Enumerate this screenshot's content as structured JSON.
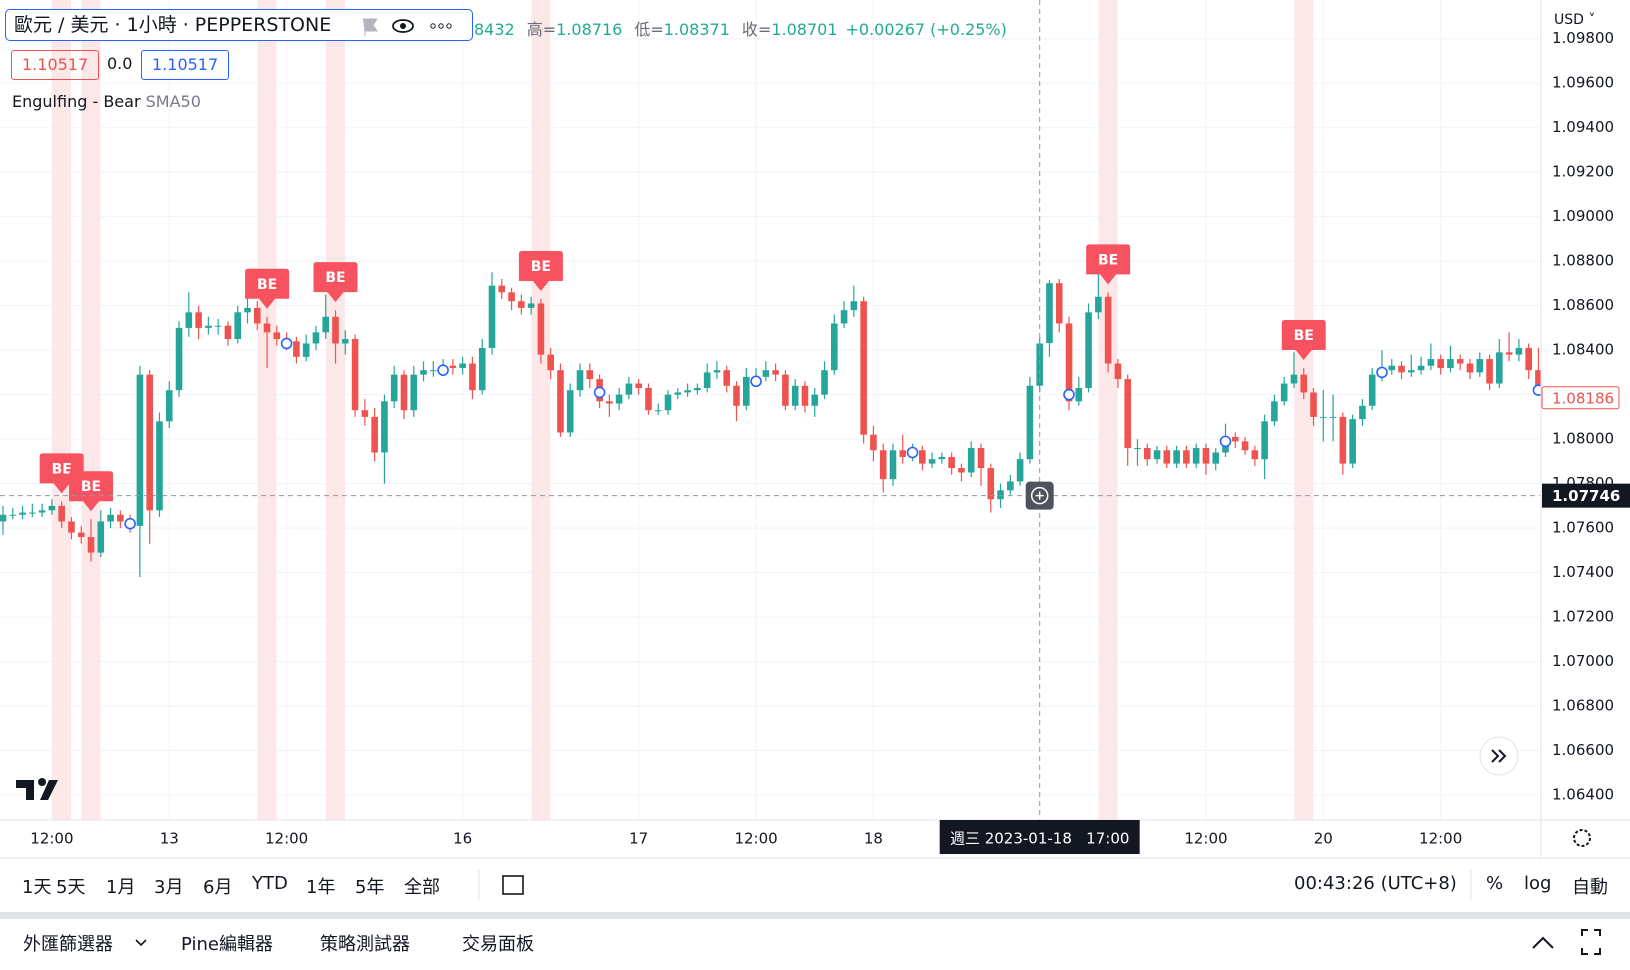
{
  "header": {
    "symbol": "歐元 / 美元 · 1小時 · PEPPERSTONE",
    "ohlc": {
      "open": "8432",
      "high_label": "高=",
      "high": "1.08716",
      "low_label": "低=",
      "low": "1.08371",
      "close_label": "收=",
      "close": "1.08701",
      "change": "+0.00267 (+0.25%)"
    },
    "prices": [
      "1.10517",
      "0.0",
      "1.10517"
    ],
    "currency": "USD"
  },
  "chart_data": {
    "type": "candlestick",
    "indicator": "Engulfing - Bear",
    "up_color": "#26a69a",
    "down_color": "#ef5350",
    "ylim": [
      1.06288,
      1.09974
    ],
    "yticks": [
      {
        "value": 1.064,
        "label": "1.06400"
      },
      {
        "value": 1.066,
        "label": "1.06600"
      },
      {
        "value": 1.068,
        "label": "1.06800"
      },
      {
        "value": 1.07,
        "label": "1.07000"
      },
      {
        "value": 1.072,
        "label": "1.07200"
      },
      {
        "value": 1.074,
        "label": "1.07400"
      },
      {
        "value": 1.076,
        "label": "1.07600"
      },
      {
        "value": 1.078,
        "label": "1.07800"
      },
      {
        "value": 1.08,
        "label": "1.08000"
      },
      {
        "value": 1.082,
        "label": "1.08200"
      },
      {
        "value": 1.084,
        "label": "1.08400"
      },
      {
        "value": 1.086,
        "label": "1.08600"
      },
      {
        "value": 1.088,
        "label": "1.08800"
      },
      {
        "value": 1.09,
        "label": "1.09000"
      },
      {
        "value": 1.092,
        "label": "1.09200"
      },
      {
        "value": 1.094,
        "label": "1.09400"
      },
      {
        "value": 1.096,
        "label": "1.09600"
      },
      {
        "value": 1.098,
        "label": "1.09800"
      }
    ],
    "grid": true,
    "categories": [
      null,
      null,
      null,
      null,
      null,
      "12:00",
      null,
      null,
      null,
      null,
      null,
      null,
      null,
      null,
      null,
      null,
      null,
      "13",
      null,
      null,
      null,
      null,
      null,
      null,
      null,
      null,
      null,
      null,
      null,
      "12:00",
      null,
      null,
      null,
      null,
      null,
      null,
      null,
      null,
      null,
      null,
      null,
      null,
      null,
      null,
      null,
      null,
      null,
      "16",
      null,
      null,
      null,
      null,
      null,
      null,
      null,
      null,
      null,
      null,
      null,
      null,
      null,
      null,
      null,
      null,
      null,
      "17",
      null,
      null,
      null,
      null,
      null,
      null,
      null,
      null,
      null,
      null,
      null,
      "12:00",
      null,
      null,
      null,
      null,
      null,
      null,
      null,
      null,
      null,
      null,
      null,
      "18",
      null,
      null,
      null,
      null,
      null,
      null,
      null,
      null,
      null,
      null,
      null,
      null,
      null,
      null,
      null,
      null,
      null,
      null,
      null,
      null,
      null,
      null,
      null,
      null,
      null,
      null,
      null,
      null,
      null,
      null,
      null,
      null,
      null,
      "12:00",
      null,
      null,
      null,
      null,
      null,
      null,
      null,
      null,
      null,
      null,
      null,
      "20",
      null,
      null,
      null,
      null,
      null,
      null,
      null,
      null,
      null,
      null,
      null,
      "12:00",
      null,
      null,
      null,
      null,
      null,
      null,
      null,
      null,
      null
    ],
    "ohlc": [
      [
        1.0763,
        1.077,
        1.0757,
        1.0766
      ],
      [
        1.0766,
        1.0769,
        1.0764,
        1.0766
      ],
      [
        1.0766,
        1.077,
        1.0764,
        1.0767
      ],
      [
        1.0767,
        1.0771,
        1.0765,
        1.0767
      ],
      [
        1.0767,
        1.0771,
        1.0765,
        1.0768
      ],
      [
        1.0768,
        1.0773,
        1.0766,
        1.077
      ],
      [
        1.077,
        1.0772,
        1.076,
        1.0763
      ],
      [
        1.0763,
        1.0765,
        1.0755,
        1.0758
      ],
      [
        1.0758,
        1.0761,
        1.0753,
        1.0756
      ],
      [
        1.0756,
        1.0764,
        1.0745,
        1.0749
      ],
      [
        1.0749,
        1.0768,
        1.0747,
        1.0763
      ],
      [
        1.0763,
        1.0769,
        1.076,
        1.0766
      ],
      [
        1.0766,
        1.0768,
        1.076,
        1.0763
      ],
      [
        1.0763,
        1.0766,
        1.0758,
        1.0761
      ],
      [
        1.0761,
        1.0833,
        1.0738,
        1.0829
      ],
      [
        1.0829,
        1.0831,
        1.0753,
        1.0768
      ],
      [
        1.0768,
        1.0812,
        1.0765,
        1.0808
      ],
      [
        1.0808,
        1.0826,
        1.0805,
        1.0822
      ],
      [
        1.0822,
        1.0853,
        1.0819,
        1.085
      ],
      [
        1.085,
        1.0866,
        1.0846,
        1.0857
      ],
      [
        1.0857,
        1.086,
        1.0845,
        1.085
      ],
      [
        1.085,
        1.0855,
        1.0847,
        1.0851
      ],
      [
        1.0851,
        1.0854,
        1.0847,
        1.0851
      ],
      [
        1.0851,
        1.0853,
        1.0842,
        1.0845
      ],
      [
        1.0845,
        1.086,
        1.0843,
        1.0857
      ],
      [
        1.0857,
        1.0867,
        1.0852,
        1.0859
      ],
      [
        1.0859,
        1.0862,
        1.0849,
        1.0852
      ],
      [
        1.0852,
        1.0855,
        1.0832,
        1.0848
      ],
      [
        1.0848,
        1.0851,
        1.0842,
        1.0845
      ],
      [
        1.0845,
        1.0848,
        1.084,
        1.0844
      ],
      [
        1.0844,
        1.0846,
        1.0834,
        1.0837
      ],
      [
        1.0837,
        1.0847,
        1.0835,
        1.0843
      ],
      [
        1.0843,
        1.0851,
        1.084,
        1.0848
      ],
      [
        1.0848,
        1.0865,
        1.0845,
        1.0855
      ],
      [
        1.0855,
        1.0858,
        1.0834,
        1.0843
      ],
      [
        1.0843,
        1.0849,
        1.0838,
        1.0845
      ],
      [
        1.0845,
        1.0847,
        1.081,
        1.0813
      ],
      [
        1.0813,
        1.0818,
        1.0806,
        1.081
      ],
      [
        1.081,
        1.0814,
        1.079,
        1.0794
      ],
      [
        1.0794,
        1.082,
        1.078,
        1.0817
      ],
      [
        1.0817,
        1.0833,
        1.0814,
        1.0829
      ],
      [
        1.0829,
        1.0831,
        1.0809,
        1.0813
      ],
      [
        1.0813,
        1.0833,
        1.081,
        1.0829
      ],
      [
        1.0829,
        1.0835,
        1.0826,
        1.0831
      ],
      [
        1.0831,
        1.0835,
        1.0828,
        1.0831
      ],
      [
        1.0831,
        1.0836,
        1.0829,
        1.0833
      ],
      [
        1.0833,
        1.0836,
        1.0829,
        1.0832
      ],
      [
        1.0832,
        1.0837,
        1.0829,
        1.0834
      ],
      [
        1.0834,
        1.0837,
        1.0818,
        1.0822
      ],
      [
        1.0822,
        1.0845,
        1.082,
        1.0841
      ],
      [
        1.0841,
        1.0875,
        1.0838,
        1.0869
      ],
      [
        1.0869,
        1.0872,
        1.0863,
        1.0866
      ],
      [
        1.0866,
        1.0868,
        1.0858,
        1.0862
      ],
      [
        1.0862,
        1.0865,
        1.0856,
        1.0859
      ],
      [
        1.0859,
        1.0864,
        1.0856,
        1.0861
      ],
      [
        1.0861,
        1.0863,
        1.0834,
        1.0838
      ],
      [
        1.0838,
        1.0841,
        1.0827,
        1.0831
      ],
      [
        1.0831,
        1.0834,
        1.0801,
        1.0803
      ],
      [
        1.0803,
        1.0825,
        1.0801,
        1.0822
      ],
      [
        1.0822,
        1.0834,
        1.0819,
        1.0831
      ],
      [
        1.0831,
        1.0834,
        1.0823,
        1.0827
      ],
      [
        1.0827,
        1.0829,
        1.0814,
        1.0817
      ],
      [
        1.0817,
        1.082,
        1.081,
        1.0816
      ],
      [
        1.0816,
        1.0823,
        1.0813,
        1.082
      ],
      [
        1.082,
        1.0828,
        1.0818,
        1.0825
      ],
      [
        1.0825,
        1.0827,
        1.082,
        1.0823
      ],
      [
        1.0823,
        1.0825,
        1.0811,
        1.0813
      ],
      [
        1.0813,
        1.0816,
        1.0811,
        1.0813
      ],
      [
        1.0813,
        1.0822,
        1.0811,
        1.082
      ],
      [
        1.082,
        1.0823,
        1.0818,
        1.0821
      ],
      [
        1.0821,
        1.0825,
        1.0819,
        1.0822
      ],
      [
        1.0822,
        1.0825,
        1.082,
        1.0823
      ],
      [
        1.0823,
        1.0834,
        1.0821,
        1.083
      ],
      [
        1.083,
        1.0835,
        1.0827,
        1.0831
      ],
      [
        1.0831,
        1.0833,
        1.0821,
        1.0824
      ],
      [
        1.0824,
        1.0826,
        1.0808,
        1.0815
      ],
      [
        1.0815,
        1.0832,
        1.0813,
        1.0828
      ],
      [
        1.0828,
        1.0832,
        1.0825,
        1.0828
      ],
      [
        1.0828,
        1.0835,
        1.0826,
        1.0831
      ],
      [
        1.0831,
        1.0834,
        1.0826,
        1.0829
      ],
      [
        1.0829,
        1.0831,
        1.0813,
        1.0815
      ],
      [
        1.0815,
        1.0827,
        1.0813,
        1.0824
      ],
      [
        1.0824,
        1.0826,
        1.0812,
        1.0815
      ],
      [
        1.0815,
        1.0823,
        1.081,
        1.082
      ],
      [
        1.082,
        1.0835,
        1.0818,
        1.0831
      ],
      [
        1.0831,
        1.0856,
        1.0829,
        1.0852
      ],
      [
        1.0852,
        1.0862,
        1.085,
        1.0858
      ],
      [
        1.0858,
        1.0869,
        1.0855,
        1.0862
      ],
      [
        1.0862,
        1.0864,
        1.0798,
        1.0802
      ],
      [
        1.0802,
        1.0806,
        1.079,
        1.0795
      ],
      [
        1.0795,
        1.0798,
        1.0776,
        1.0782
      ],
      [
        1.0782,
        1.0798,
        1.0779,
        1.0795
      ],
      [
        1.0795,
        1.0802,
        1.0789,
        1.0792
      ],
      [
        1.0792,
        1.0798,
        1.079,
        1.0795
      ],
      [
        1.0795,
        1.0797,
        1.0786,
        1.0789
      ],
      [
        1.0789,
        1.0794,
        1.0787,
        1.0791
      ],
      [
        1.0791,
        1.0794,
        1.0789,
        1.0792
      ],
      [
        1.0792,
        1.0794,
        1.0784,
        1.0787
      ],
      [
        1.0787,
        1.0789,
        1.0781,
        1.0785
      ],
      [
        1.0785,
        1.0799,
        1.0783,
        1.0796
      ],
      [
        1.0796,
        1.0798,
        1.0779,
        1.0787
      ],
      [
        1.0787,
        1.0789,
        1.0767,
        1.0773
      ],
      [
        1.0773,
        1.078,
        1.0769,
        1.0777
      ],
      [
        1.0777,
        1.0784,
        1.0775,
        1.0781
      ],
      [
        1.0781,
        1.0794,
        1.0779,
        1.0791
      ],
      [
        1.0791,
        1.0828,
        1.0789,
        1.0824
      ],
      [
        1.0824,
        1.0846,
        1.0821,
        1.0843
      ],
      [
        1.08432,
        1.08716,
        1.08371,
        1.08701
      ],
      [
        1.08701,
        1.0872,
        1.0848,
        1.0852
      ],
      [
        1.0852,
        1.0855,
        1.0813,
        1.0817
      ],
      [
        1.0817,
        1.0828,
        1.0815,
        1.0823
      ],
      [
        1.0823,
        1.0861,
        1.0821,
        1.0857
      ],
      [
        1.0857,
        1.0884,
        1.0854,
        1.0864
      ],
      [
        1.0864,
        1.0866,
        1.083,
        1.0834
      ],
      [
        1.0834,
        1.0836,
        1.0823,
        1.0827
      ],
      [
        1.0827,
        1.0829,
        1.0788,
        1.0796
      ],
      [
        1.0796,
        1.08,
        1.0788,
        1.0796
      ],
      [
        1.0796,
        1.0798,
        1.0788,
        1.0791
      ],
      [
        1.0791,
        1.0797,
        1.0789,
        1.0795
      ],
      [
        1.0795,
        1.0797,
        1.0787,
        1.0789
      ],
      [
        1.0789,
        1.0797,
        1.0787,
        1.0795
      ],
      [
        1.0795,
        1.0797,
        1.0787,
        1.0789
      ],
      [
        1.0789,
        1.0798,
        1.0787,
        1.0796
      ],
      [
        1.0796,
        1.0798,
        1.0784,
        1.0789
      ],
      [
        1.0789,
        1.0796,
        1.0786,
        1.0794
      ],
      [
        1.0794,
        1.0807,
        1.0792,
        1.0801
      ],
      [
        1.0801,
        1.0803,
        1.0796,
        1.0799
      ],
      [
        1.0799,
        1.0801,
        1.0793,
        1.0795
      ],
      [
        1.0795,
        1.0797,
        1.0788,
        1.0791
      ],
      [
        1.0791,
        1.0811,
        1.0782,
        1.0808
      ],
      [
        1.0808,
        1.082,
        1.0806,
        1.0817
      ],
      [
        1.0817,
        1.0828,
        1.0815,
        1.0825
      ],
      [
        1.0825,
        1.0839,
        1.0823,
        1.0829
      ],
      [
        1.0829,
        1.0832,
        1.0818,
        1.0821
      ],
      [
        1.0821,
        1.0823,
        1.0806,
        1.081
      ],
      [
        1.081,
        1.0822,
        1.0799,
        1.081
      ],
      [
        1.081,
        1.082,
        1.0799,
        1.081
      ],
      [
        1.081,
        1.0812,
        1.0784,
        1.0789
      ],
      [
        1.0789,
        1.0811,
        1.0787,
        1.0809
      ],
      [
        1.0809,
        1.0818,
        1.0806,
        1.0815
      ],
      [
        1.0815,
        1.0832,
        1.0813,
        1.0829
      ],
      [
        1.0829,
        1.084,
        1.0826,
        1.0831
      ],
      [
        1.0831,
        1.0836,
        1.0829,
        1.0833
      ],
      [
        1.0833,
        1.0835,
        1.0827,
        1.083
      ],
      [
        1.083,
        1.0838,
        1.0828,
        1.0831
      ],
      [
        1.0831,
        1.0837,
        1.0829,
        1.0833
      ],
      [
        1.0833,
        1.0843,
        1.0831,
        1.0836
      ],
      [
        1.0836,
        1.0838,
        1.0829,
        1.0832
      ],
      [
        1.0832,
        1.0842,
        1.083,
        1.0836
      ],
      [
        1.0836,
        1.0838,
        1.0831,
        1.0834
      ],
      [
        1.0834,
        1.0836,
        1.0827,
        1.083
      ],
      [
        1.083,
        1.0839,
        1.0828,
        1.0836
      ],
      [
        1.0836,
        1.0838,
        1.0822,
        1.0825
      ],
      [
        1.0825,
        1.0845,
        1.0823,
        1.0839
      ],
      [
        1.0839,
        1.0848,
        1.0835,
        1.0838
      ],
      [
        1.0838,
        1.0845,
        1.0835,
        1.0841
      ],
      [
        1.0841,
        1.0843,
        1.0827,
        1.0831
      ],
      [
        1.0831,
        1.0841,
        1.0821,
        1.0824
      ],
      [
        1.0824,
        1.0826,
        1.0816,
        1.08186
      ]
    ],
    "signals": {
      "label": "BE",
      "indices": [
        6,
        9,
        27,
        34,
        55,
        113,
        133
      ],
      "color": "#f7525f",
      "band_color": "#fde8e9"
    },
    "sma": {
      "name": "SMA50",
      "color": "#2962ff",
      "x": [
        13,
        29,
        45,
        61,
        77,
        93,
        109,
        125,
        141,
        157
      ],
      "values": [
        1.0762,
        1.0843,
        1.0831,
        1.0821,
        1.0826,
        1.0794,
        1.082,
        1.0799,
        1.083,
        1.0822
      ]
    },
    "last_price": 1.08186,
    "crosshair": {
      "x": 106,
      "price": 1.07746,
      "time_label": "週三 2023-01-18   17:00"
    }
  },
  "toolbar": {
    "ranges": [
      "1天",
      "5天",
      "1月",
      "3月",
      "6月",
      "YTD",
      "1年",
      "5年",
      "全部"
    ],
    "clock": "00:43:26 (UTC+8)",
    "options": [
      "%",
      "log",
      "自動"
    ]
  },
  "bottom_panel": {
    "tabs": [
      "外匯篩選器",
      "Pine編輯器",
      "策略測試器",
      "交易面板"
    ]
  }
}
